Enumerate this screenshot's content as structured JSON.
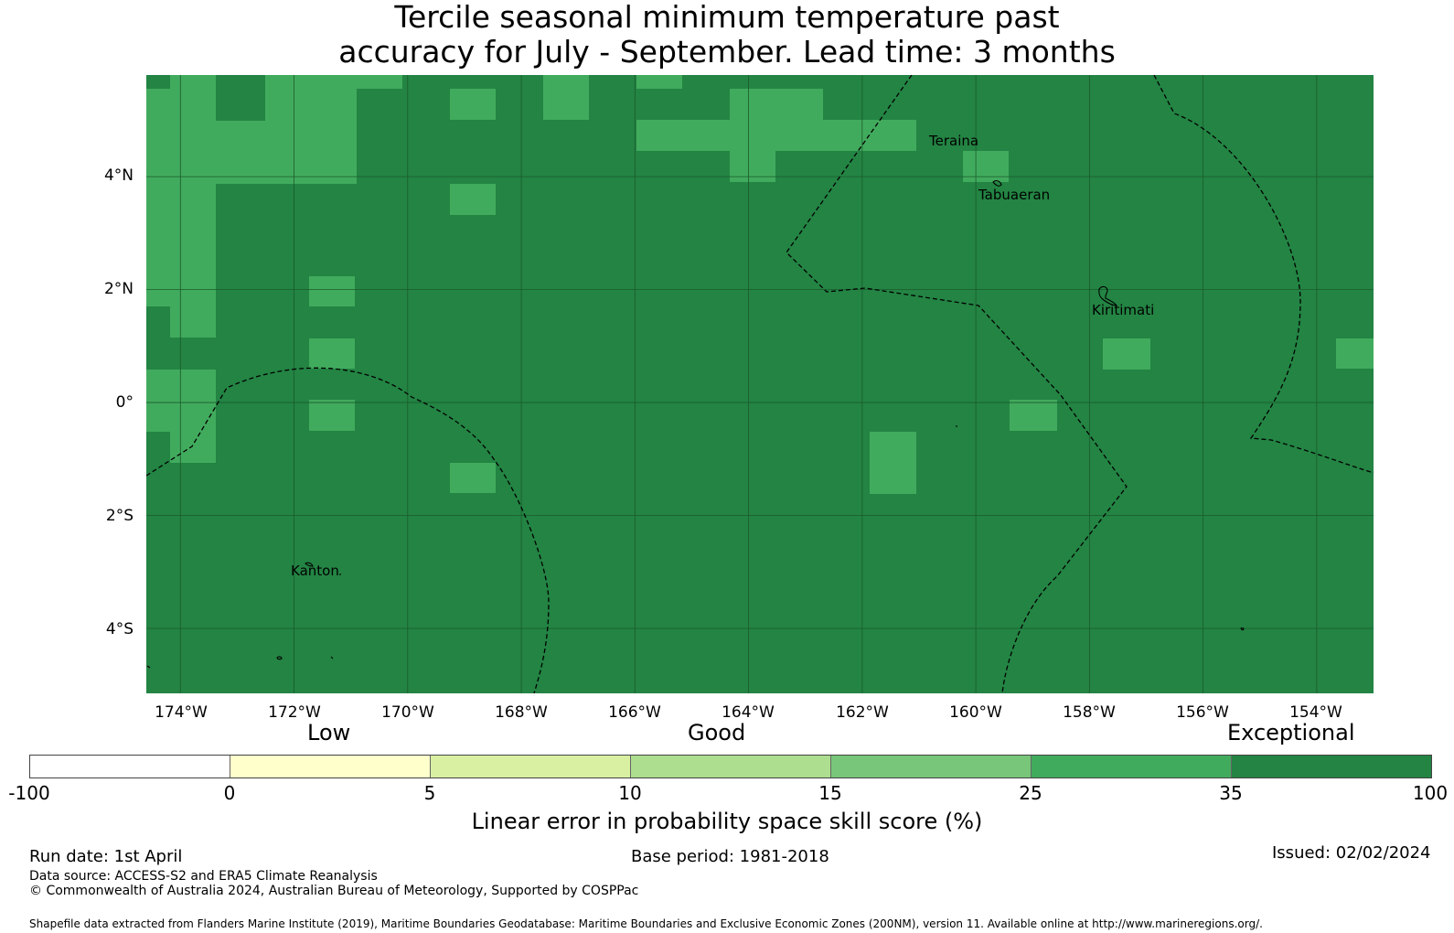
{
  "title": {
    "line1": "Tercile seasonal minimum temperature past",
    "line2": "accuracy for July - September. Lead time: 3 months"
  },
  "map": {
    "extent": {
      "lon_min": -174.6,
      "lon_max": -153.0,
      "lat_min": -5.15,
      "lat_max": 5.8
    },
    "lat_ticks": [
      {
        "label": "4°N",
        "lat": 4
      },
      {
        "label": "2°N",
        "lat": 2
      },
      {
        "label": "0°",
        "lat": 0
      },
      {
        "label": "2°S",
        "lat": -2
      },
      {
        "label": "4°S",
        "lat": -4
      }
    ],
    "lon_ticks": [
      {
        "label": "174°W",
        "lon": -174
      },
      {
        "label": "172°W",
        "lon": -172
      },
      {
        "label": "170°W",
        "lon": -170
      },
      {
        "label": "168°W",
        "lon": -168
      },
      {
        "label": "166°W",
        "lon": -166
      },
      {
        "label": "164°W",
        "lon": -164
      },
      {
        "label": "162°W",
        "lon": -162
      },
      {
        "label": "160°W",
        "lon": -160
      },
      {
        "label": "158°W",
        "lon": -158
      },
      {
        "label": "156°W",
        "lon": -156
      },
      {
        "label": "154°W",
        "lon": -154
      }
    ],
    "colors": {
      "exceptional": "#238443",
      "high": "#41ab5d",
      "grid_line": "#1a5a2c"
    },
    "places": [
      {
        "name": "Teraina",
        "lon": -160.9,
        "lat": 4.6
      },
      {
        "name": "Tabuaeran",
        "lon": -159.93,
        "lat": 3.65
      },
      {
        "name": "Kiritimati",
        "lon": -157.95,
        "lat": 1.62
      },
      {
        "name": "Kanton",
        "lon": -172.0,
        "lat": -3.05
      }
    ]
  },
  "scale_words": {
    "low": "Low",
    "good": "Good",
    "exceptional": "Exceptional"
  },
  "legend": {
    "colors": [
      "#ffffff",
      "#ffffcc",
      "#d9f0a3",
      "#addd8e",
      "#78c679",
      "#41ab5d",
      "#238443"
    ],
    "ticks": [
      "-100",
      "0",
      "5",
      "10",
      "15",
      "25",
      "35",
      "100"
    ],
    "xlabel": "Linear error in probability space skill score (%)"
  },
  "footer": {
    "run_date": "Run date: 1st April",
    "base_period": "Base period: 1981-2018",
    "issued": "Issued: 02/02/2024",
    "data_source": "Data source: ACCESS-S2 and ERA5 Climate Reanalysis",
    "copyright": "© Commonwealth of Australia 2024, Australian Bureau of Meteorology, Supported by COSPPac",
    "shapefile": "Shapefile data extracted from Flanders Marine Institute (2019), Maritime Boundaries Geodatabase: Maritime Boundaries and Exclusive Economic Zones (200NM), version 11. Available online at http://www.marineregions.org/."
  }
}
